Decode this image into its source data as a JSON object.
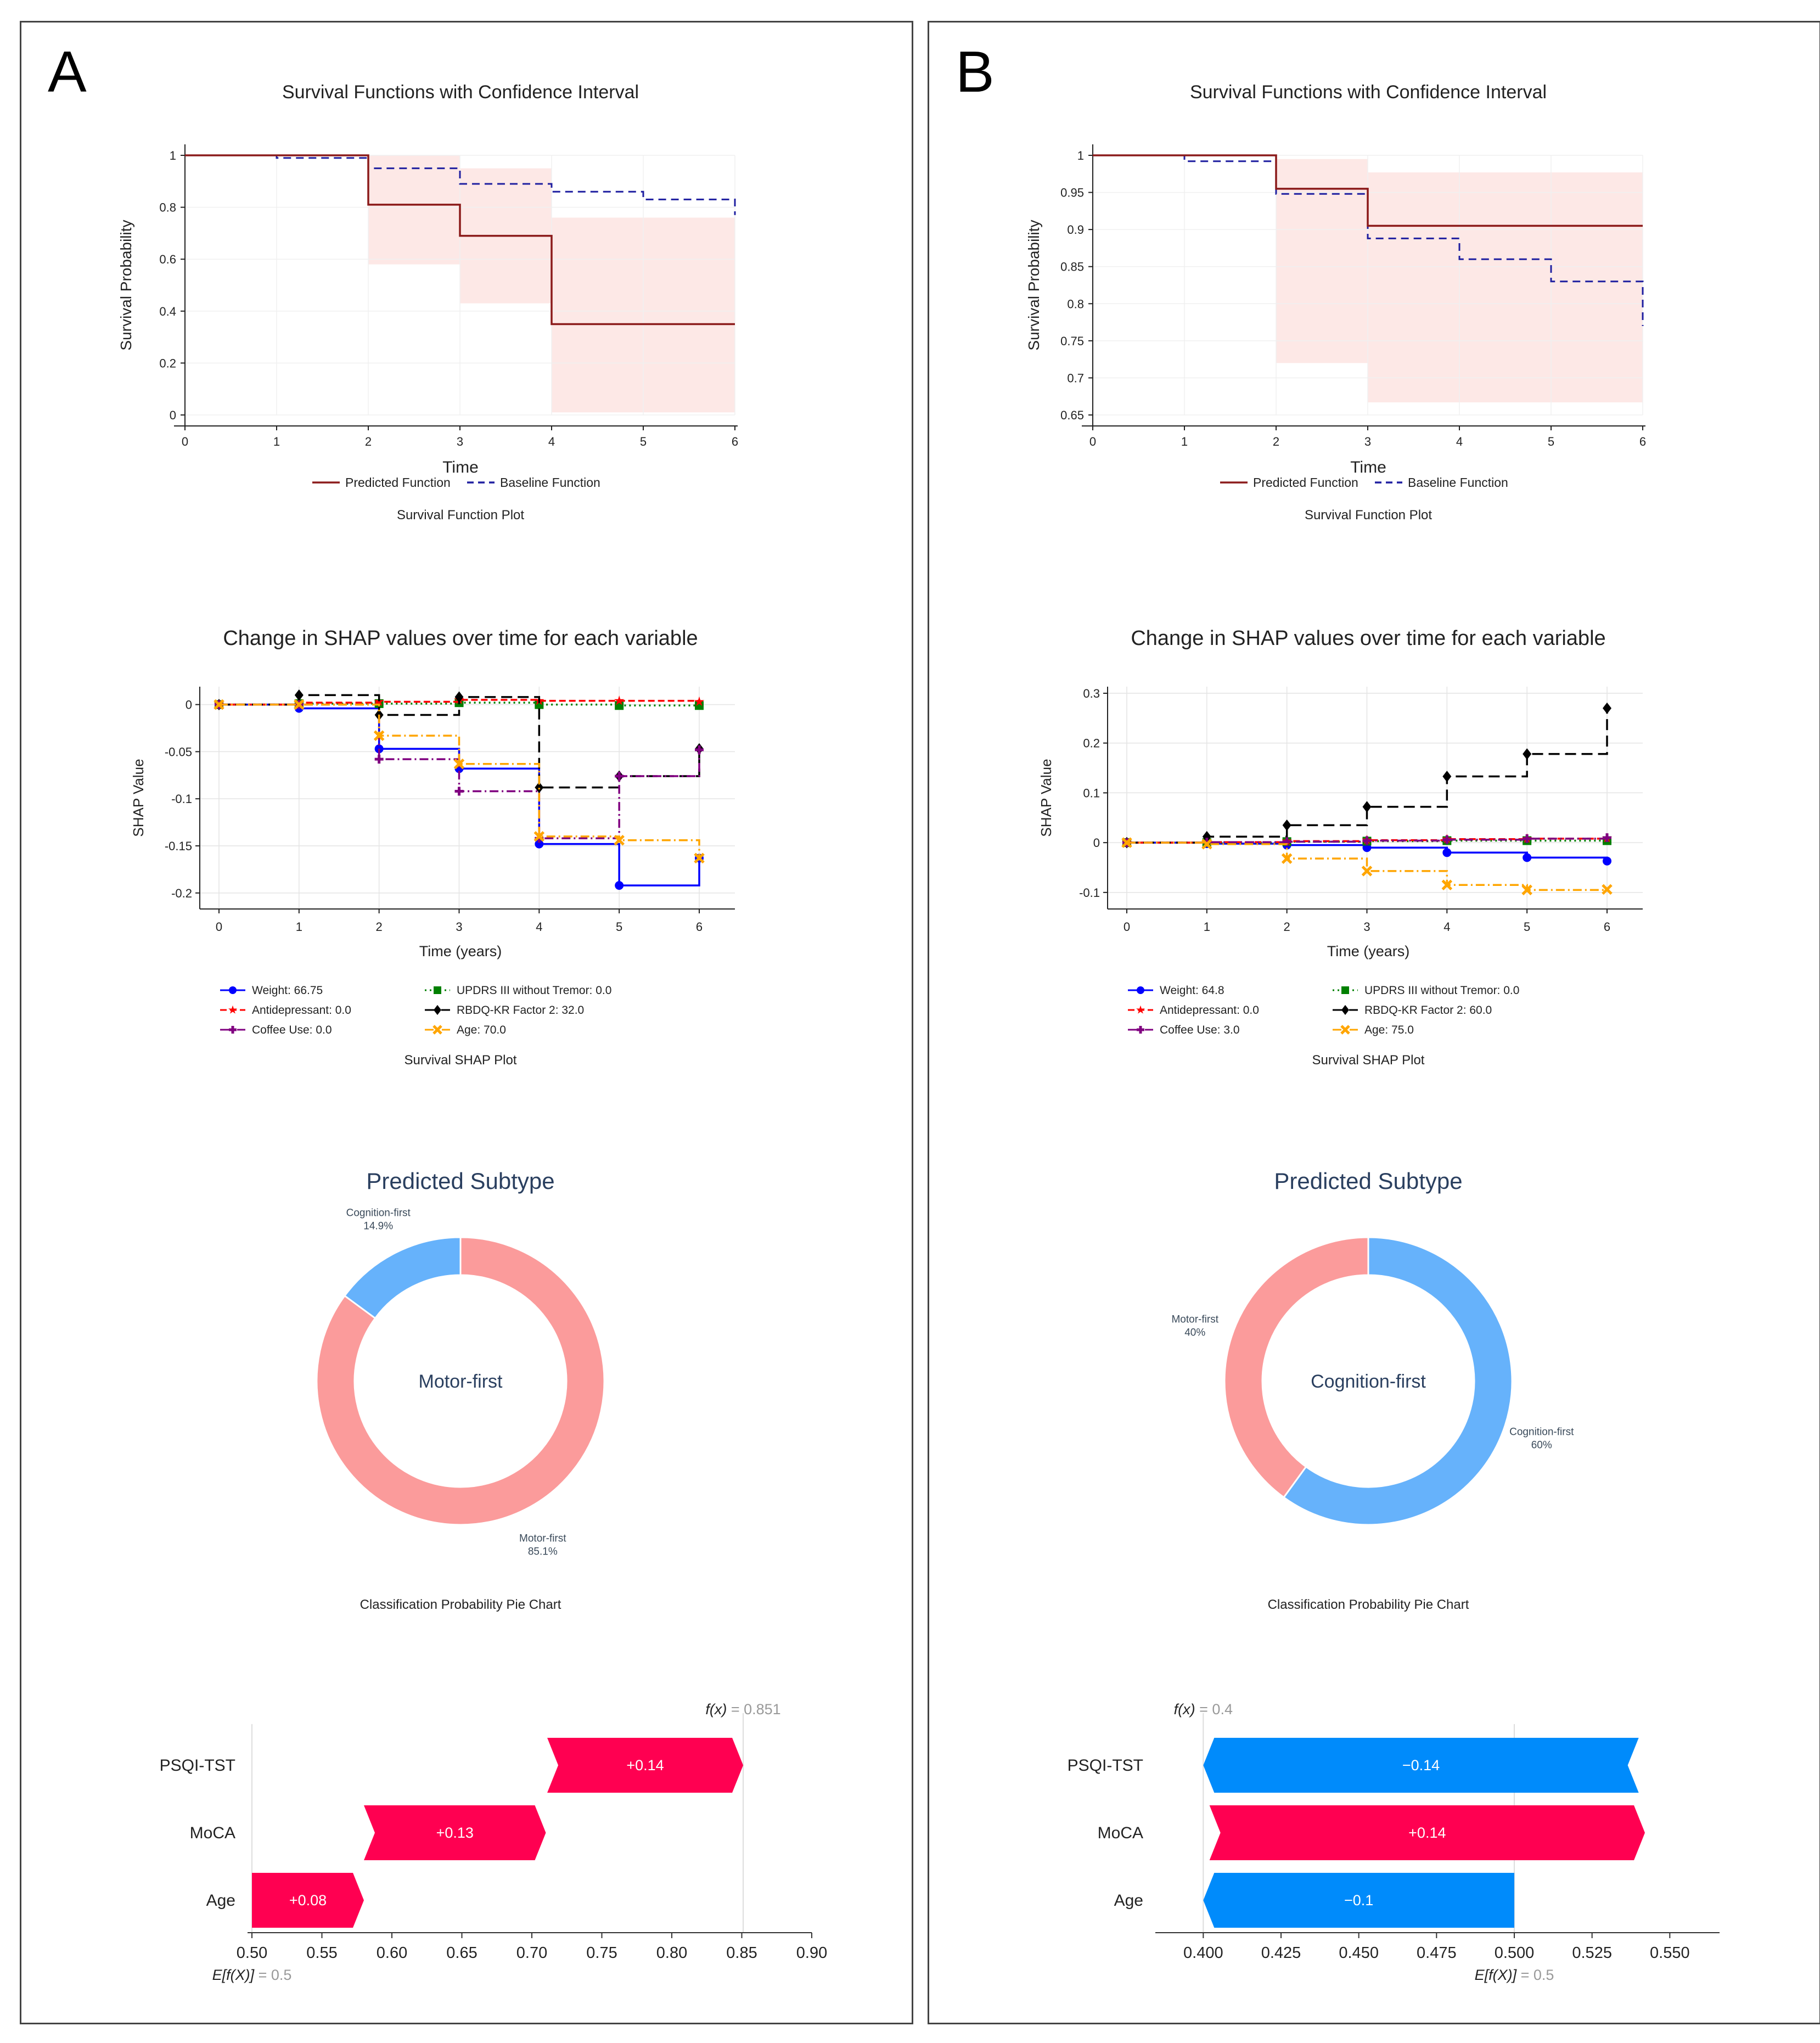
{
  "panels": [
    {
      "id": "A",
      "letter": "A",
      "survival": {
        "title": "Survival Functions with Confidence Interval",
        "xlabel": "Time",
        "ylabel": "Survival Probability",
        "caption": "Survival Function Plot",
        "xlim": [
          0,
          6
        ],
        "ylim": [
          0,
          1
        ],
        "xticks": [
          "0",
          "1",
          "2",
          "3",
          "4",
          "5",
          "6"
        ],
        "yticks": [
          "0",
          "0.2",
          "0.4",
          "0.6",
          "0.8",
          "1"
        ],
        "legend": [
          "Predicted Function",
          "Baseline Function"
        ],
        "colors": {
          "predicted": "#8b1a1a",
          "baseline": "#1f1fa0",
          "ci": "#fde8e6"
        }
      },
      "shap": {
        "title": "Change in SHAP values over time for each variable",
        "xlabel": "Time (years)",
        "ylabel": "SHAP Value",
        "caption": "Survival SHAP Plot",
        "xticks": [
          "0",
          "1",
          "2",
          "3",
          "4",
          "5",
          "6"
        ],
        "yticks": [
          "0",
          "-0.05",
          "-0.1",
          "-0.15",
          "-0.2"
        ],
        "legend": [
          "Weight: 66.75",
          "UPDRS III without Tremor: 0.0",
          "Antidepressant: 0.0",
          "RBDQ-KR Factor 2: 32.0",
          "Coffee Use: 0.0",
          "Age: 70.0"
        ]
      },
      "donut": {
        "title": "Predicted Subtype",
        "center_label": "Motor-first",
        "caption": "Classification Probability Pie Chart",
        "labels": [
          {
            "name": "Cognition-first",
            "pct": "14.9%"
          },
          {
            "name": "Motor-first",
            "pct": "85.1%"
          }
        ],
        "colors": {
          "Motor-first": "#fb9b9b",
          "Cognition-first": "#66b2fb"
        }
      },
      "waterfall": {
        "fx_label": "f(x)",
        "fx_value": "= 0.851",
        "ef_label": "E[f(X)]",
        "ef_value": "= 0.5",
        "features": [
          "PSQI-TST",
          "MoCA",
          "Age"
        ],
        "bar_labels": [
          "+0.14",
          "+0.13",
          "+0.08"
        ],
        "xticks": [
          "0.50",
          "0.55",
          "0.60",
          "0.65",
          "0.70",
          "0.75",
          "0.80",
          "0.85",
          "0.90"
        ],
        "colors": {
          "positive": "#ff0051",
          "negative": "#008bfb"
        }
      }
    },
    {
      "id": "B",
      "letter": "B",
      "survival": {
        "title": "Survival Functions with Confidence Interval",
        "xlabel": "Time",
        "ylabel": "Survival Probability",
        "caption": "Survival Function Plot",
        "xlim": [
          0,
          6
        ],
        "ylim": [
          0.65,
          1
        ],
        "xticks": [
          "0",
          "1",
          "2",
          "3",
          "4",
          "5",
          "6"
        ],
        "yticks": [
          "0.65",
          "0.7",
          "0.75",
          "0.8",
          "0.85",
          "0.9",
          "0.95",
          "1"
        ],
        "legend": [
          "Predicted Function",
          "Baseline Function"
        ],
        "colors": {
          "predicted": "#8b1a1a",
          "baseline": "#1f1fa0",
          "ci": "#fde8e6"
        }
      },
      "shap": {
        "title": "Change in SHAP values over time for each variable",
        "xlabel": "Time (years)",
        "ylabel": "SHAP Value",
        "caption": "Survival SHAP Plot",
        "xticks": [
          "0",
          "1",
          "2",
          "3",
          "4",
          "5",
          "6"
        ],
        "yticks": [
          "0.3",
          "0.2",
          "0.1",
          "0",
          "-0.1"
        ],
        "legend": [
          "Weight: 64.8",
          "UPDRS III without Tremor: 0.0",
          "Antidepressant: 0.0",
          "RBDQ-KR Factor 2: 60.0",
          "Coffee Use: 3.0",
          "Age: 75.0"
        ]
      },
      "donut": {
        "title": "Predicted Subtype",
        "center_label": "Cognition-first",
        "caption": "Classification Probability Pie Chart",
        "labels": [
          {
            "name": "Motor-first",
            "pct": "40%"
          },
          {
            "name": "Cognition-first",
            "pct": "60%"
          }
        ],
        "colors": {
          "Motor-first": "#fb9b9b",
          "Cognition-first": "#66b2fb"
        }
      },
      "waterfall": {
        "fx_label": "f(x)",
        "fx_value": "= 0.4",
        "ef_label": "E[f(X)]",
        "ef_value": "= 0.5",
        "features": [
          "PSQI-TST",
          "MoCA",
          "Age"
        ],
        "bar_labels": [
          "−0.14",
          "+0.14",
          "−0.1"
        ],
        "xticks": [
          "0.400",
          "0.425",
          "0.450",
          "0.475",
          "0.500",
          "0.525",
          "0.550"
        ],
        "colors": {
          "positive": "#ff0051",
          "negative": "#008bfb"
        }
      }
    }
  ],
  "chart_data": [
    {
      "panel": "A",
      "type": "line",
      "title": "Survival Functions with Confidence Interval",
      "xlabel": "Time",
      "ylabel": "Survival Probability",
      "xlim": [
        0,
        6
      ],
      "ylim": [
        0,
        1
      ],
      "step": true,
      "series": [
        {
          "name": "Predicted Function",
          "x": [
            0,
            2,
            3,
            4,
            6
          ],
          "y": [
            1.0,
            0.81,
            0.69,
            0.35,
            0.35
          ]
        },
        {
          "name": "Baseline Function",
          "x": [
            0,
            1,
            2,
            3,
            4,
            5,
            6
          ],
          "y": [
            1.0,
            0.99,
            0.95,
            0.89,
            0.86,
            0.83,
            0.77
          ]
        }
      ],
      "confidence_interval": {
        "x": [
          2,
          3,
          4,
          6
        ],
        "lower": [
          0.58,
          0.43,
          0.01,
          0.01
        ],
        "upper": [
          1.0,
          0.95,
          0.76,
          0.76
        ]
      },
      "legend": "bottom",
      "grid": true
    },
    {
      "panel": "A",
      "type": "line",
      "title": "Change in SHAP values over time for each variable",
      "xlabel": "Time (years)",
      "ylabel": "SHAP Value",
      "xlim": [
        0,
        6
      ],
      "ylim": [
        -0.21,
        0.012
      ],
      "step": true,
      "x": [
        0,
        1,
        2,
        3,
        4,
        5,
        6
      ],
      "series": [
        {
          "name": "Weight: 66.75",
          "values": [
            0,
            -0.004,
            -0.047,
            -0.068,
            -0.148,
            -0.192,
            -0.163
          ],
          "color": "#0000ff",
          "marker": "circle",
          "dash": "solid"
        },
        {
          "name": "UPDRS III without Tremor: 0.0",
          "values": [
            0,
            0.001,
            0.001,
            0.002,
            0.0,
            -0.001,
            -0.001
          ],
          "color": "#008000",
          "marker": "square",
          "dash": "dotted"
        },
        {
          "name": "Antidepressant: 0.0",
          "values": [
            0,
            0.002,
            0.003,
            0.005,
            0.004,
            0.004,
            0.003
          ],
          "color": "#ff0000",
          "marker": "star",
          "dash": "dashed"
        },
        {
          "name": "RBDQ-KR Factor 2: 32.0",
          "values": [
            0,
            0.01,
            -0.011,
            0.008,
            -0.088,
            -0.076,
            -0.047
          ],
          "color": "#000000",
          "marker": "diamond",
          "dash": "longdash"
        },
        {
          "name": "Coffee Use: 0.0",
          "values": [
            0,
            0.0,
            -0.058,
            -0.092,
            -0.142,
            -0.076,
            -0.048
          ],
          "color": "#800080",
          "marker": "plus",
          "dash": "dashdot"
        },
        {
          "name": "Age: 70.0",
          "values": [
            0,
            0.0,
            -0.033,
            -0.063,
            -0.14,
            -0.144,
            -0.163
          ],
          "color": "#ffa500",
          "marker": "x",
          "dash": "dashdot"
        }
      ],
      "legend": "bottom",
      "grid": true
    },
    {
      "panel": "A",
      "type": "pie",
      "title": "Predicted Subtype",
      "categories": [
        "Cognition-first",
        "Motor-first"
      ],
      "values": [
        14.9,
        85.1
      ],
      "hole": true
    },
    {
      "panel": "A",
      "type": "bar",
      "orientation": "waterfall",
      "categories": [
        "PSQI-TST",
        "MoCA",
        "Age"
      ],
      "start": [
        0.711,
        0.58,
        0.5
      ],
      "values": [
        0.14,
        0.13,
        0.08
      ],
      "fx": 0.851,
      "expected": 0.5,
      "xlim": [
        0.5,
        0.9
      ]
    },
    {
      "panel": "B",
      "type": "line",
      "title": "Survival Functions with Confidence Interval",
      "xlabel": "Time",
      "ylabel": "Survival Probability",
      "xlim": [
        0,
        6
      ],
      "ylim": [
        0.65,
        1
      ],
      "step": true,
      "series": [
        {
          "name": "Predicted Function",
          "x": [
            0,
            2,
            3,
            6
          ],
          "y": [
            1.0,
            0.955,
            0.905,
            0.905
          ]
        },
        {
          "name": "Baseline Function",
          "x": [
            0,
            1,
            2,
            3,
            4,
            5,
            6
          ],
          "y": [
            1.0,
            0.992,
            0.948,
            0.888,
            0.86,
            0.83,
            0.77
          ]
        }
      ],
      "confidence_interval": {
        "x": [
          2,
          3,
          6
        ],
        "lower": [
          0.72,
          0.667,
          0.667
        ],
        "upper": [
          0.995,
          0.977,
          0.977
        ]
      },
      "legend": "bottom",
      "grid": true
    },
    {
      "panel": "B",
      "type": "line",
      "title": "Change in SHAP values over time for each variable",
      "xlabel": "Time (years)",
      "ylabel": "SHAP Value",
      "xlim": [
        0,
        6
      ],
      "ylim": [
        -0.12,
        0.3
      ],
      "step": true,
      "x": [
        0,
        1,
        2,
        3,
        4,
        5,
        6
      ],
      "series": [
        {
          "name": "Weight: 64.8",
          "values": [
            0,
            -0.002,
            -0.005,
            -0.01,
            -0.02,
            -0.03,
            -0.037
          ],
          "color": "#0000ff",
          "marker": "circle",
          "dash": "solid"
        },
        {
          "name": "UPDRS III without Tremor: 0.0",
          "values": [
            0,
            0.0,
            0.002,
            0.003,
            0.004,
            0.004,
            0.004
          ],
          "color": "#008000",
          "marker": "square",
          "dash": "dotted"
        },
        {
          "name": "Antidepressant: 0.0",
          "values": [
            0,
            0.001,
            0.003,
            0.005,
            0.007,
            0.008,
            0.009
          ],
          "color": "#ff0000",
          "marker": "star",
          "dash": "dashed"
        },
        {
          "name": "RBDQ-KR Factor 2: 60.0",
          "values": [
            0,
            0.012,
            0.035,
            0.072,
            0.133,
            0.178,
            0.27
          ],
          "color": "#000000",
          "marker": "diamond",
          "dash": "longdash"
        },
        {
          "name": "Coffee Use: 3.0",
          "values": [
            0,
            0.001,
            0.002,
            0.004,
            0.006,
            0.008,
            0.01
          ],
          "color": "#800080",
          "marker": "plus",
          "dash": "dashdot"
        },
        {
          "name": "Age: 75.0",
          "values": [
            0,
            -0.003,
            -0.032,
            -0.057,
            -0.085,
            -0.095,
            -0.094
          ],
          "color": "#ffa500",
          "marker": "x",
          "dash": "dashdot"
        }
      ],
      "legend": "bottom",
      "grid": true
    },
    {
      "panel": "B",
      "type": "pie",
      "title": "Predicted Subtype",
      "categories": [
        "Motor-first",
        "Cognition-first"
      ],
      "values": [
        40,
        60
      ],
      "hole": true
    },
    {
      "panel": "B",
      "type": "bar",
      "orientation": "waterfall",
      "categories": [
        "PSQI-TST",
        "MoCA",
        "Age"
      ],
      "start": [
        0.54,
        0.402,
        0.5
      ],
      "values": [
        -0.14,
        0.14,
        -0.1
      ],
      "fx": 0.4,
      "expected": 0.5,
      "xlim": [
        0.386,
        0.566
      ]
    }
  ]
}
